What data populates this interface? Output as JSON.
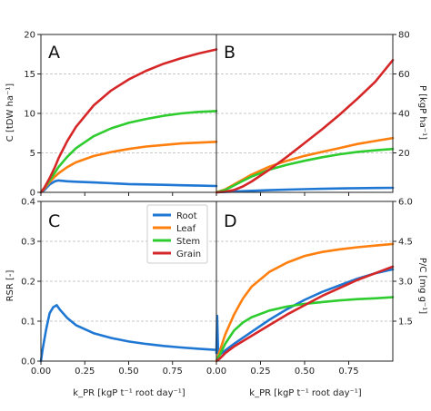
{
  "colors": {
    "Root": "#1f77d4",
    "Leaf": "#ff7f0e",
    "Stem": "#2ecc2e",
    "Grain": "#d62728",
    "grid": "#b8b8b8"
  },
  "legend": {
    "entries": [
      "Root",
      "Leaf",
      "Stem",
      "Grain"
    ],
    "placement": "inside panel C, top-right"
  },
  "chart_data": [
    {
      "panel": "A",
      "type": "line",
      "ylabel": "C [tDW ha⁻¹]",
      "xlim": [
        0,
        1
      ],
      "ylim": [
        0,
        20
      ],
      "yticks": [
        0,
        5,
        10,
        15,
        20
      ],
      "xticks": [],
      "grid": "horizontal dashed",
      "series": [
        {
          "name": "Root",
          "x": [
            0,
            0.02,
            0.05,
            0.08,
            0.1,
            0.15,
            0.2,
            0.3,
            0.4,
            0.5,
            0.6,
            0.7,
            0.8,
            0.9,
            1.0
          ],
          "y": [
            0,
            0.3,
            1.0,
            1.4,
            1.5,
            1.4,
            1.35,
            1.25,
            1.15,
            1.05,
            1.0,
            0.95,
            0.9,
            0.85,
            0.8
          ]
        },
        {
          "name": "Leaf",
          "x": [
            0,
            0.02,
            0.05,
            0.08,
            0.1,
            0.15,
            0.2,
            0.3,
            0.4,
            0.5,
            0.6,
            0.7,
            0.8,
            0.9,
            1.0
          ],
          "y": [
            0,
            0.5,
            1.3,
            2.0,
            2.4,
            3.2,
            3.8,
            4.6,
            5.1,
            5.5,
            5.8,
            6.0,
            6.2,
            6.3,
            6.4
          ]
        },
        {
          "name": "Stem",
          "x": [
            0,
            0.02,
            0.05,
            0.08,
            0.1,
            0.15,
            0.2,
            0.3,
            0.4,
            0.5,
            0.6,
            0.7,
            0.8,
            0.9,
            1.0
          ],
          "y": [
            0,
            0.6,
            1.5,
            2.5,
            3.2,
            4.5,
            5.6,
            7.1,
            8.1,
            8.8,
            9.3,
            9.7,
            10.0,
            10.2,
            10.3
          ]
        },
        {
          "name": "Grain",
          "x": [
            0,
            0.02,
            0.05,
            0.08,
            0.1,
            0.15,
            0.2,
            0.3,
            0.4,
            0.5,
            0.6,
            0.7,
            0.8,
            0.9,
            1.0
          ],
          "y": [
            0,
            0.6,
            1.8,
            3.2,
            4.3,
            6.5,
            8.3,
            11.0,
            12.9,
            14.3,
            15.4,
            16.3,
            17.0,
            17.6,
            18.1
          ]
        }
      ]
    },
    {
      "panel": "B",
      "type": "line",
      "ylabel": "P [kgP ha⁻¹]",
      "xlim": [
        0,
        1
      ],
      "ylim": [
        0,
        80
      ],
      "yticks": [
        20,
        40,
        60,
        80
      ],
      "xticks": [],
      "grid": "horizontal dashed",
      "series": [
        {
          "name": "Root",
          "x": [
            0,
            0.1,
            0.2,
            0.3,
            0.4,
            0.5,
            0.6,
            0.7,
            0.8,
            0.9,
            1.0
          ],
          "y": [
            0,
            0.4,
            0.8,
            1.1,
            1.4,
            1.6,
            1.8,
            2.0,
            2.1,
            2.2,
            2.3
          ]
        },
        {
          "name": "Leaf",
          "x": [
            0,
            0.05,
            0.1,
            0.15,
            0.2,
            0.3,
            0.4,
            0.5,
            0.6,
            0.7,
            0.8,
            0.9,
            1.0
          ],
          "y": [
            0,
            1.5,
            4.0,
            6.5,
            9.0,
            13.0,
            16.0,
            18.5,
            20.5,
            22.5,
            24.5,
            26.0,
            27.5
          ]
        },
        {
          "name": "Stem",
          "x": [
            0,
            0.05,
            0.1,
            0.15,
            0.2,
            0.3,
            0.4,
            0.5,
            0.6,
            0.7,
            0.8,
            0.9,
            1.0
          ],
          "y": [
            0,
            1.2,
            3.5,
            5.8,
            8.0,
            11.5,
            14.0,
            16.0,
            17.8,
            19.3,
            20.5,
            21.3,
            22.0
          ]
        },
        {
          "name": "Grain",
          "x": [
            0,
            0.05,
            0.1,
            0.15,
            0.2,
            0.3,
            0.4,
            0.5,
            0.6,
            0.7,
            0.8,
            0.9,
            1.0
          ],
          "y": [
            0,
            0.3,
            1.2,
            3.0,
            5.5,
            11.5,
            18.0,
            25.0,
            32.0,
            39.5,
            47.5,
            56.0,
            67.0
          ]
        }
      ]
    },
    {
      "panel": "C",
      "type": "line",
      "ylabel": "RSR [-]",
      "xlabel": "k_PR [kgP t⁻¹ root day⁻¹]",
      "xlim": [
        0,
        1
      ],
      "ylim": [
        0,
        0.4
      ],
      "yticks": [
        0.0,
        0.1,
        0.2,
        0.3,
        0.4
      ],
      "xticks": [
        0.0,
        0.25,
        0.5,
        0.75
      ],
      "xticklabels": [
        "0.00",
        "0.25",
        "0.50",
        "0.75"
      ],
      "grid": "horizontal dashed",
      "series": [
        {
          "name": "Root",
          "x": [
            0,
            0.01,
            0.03,
            0.05,
            0.07,
            0.09,
            0.11,
            0.15,
            0.2,
            0.3,
            0.4,
            0.5,
            0.6,
            0.7,
            0.8,
            0.9,
            1.0
          ],
          "y": [
            0,
            0.03,
            0.08,
            0.12,
            0.135,
            0.14,
            0.128,
            0.108,
            0.09,
            0.07,
            0.058,
            0.049,
            0.043,
            0.038,
            0.034,
            0.031,
            0.028
          ]
        }
      ]
    },
    {
      "panel": "D",
      "type": "line",
      "ylabel": "P/C [mg g⁻¹]",
      "xlabel": "k_PR [kgP t⁻¹ root day⁻¹]",
      "xlim": [
        0,
        1
      ],
      "ylim": [
        0,
        6
      ],
      "yticks": [
        1.5,
        3.0,
        4.5,
        6.0
      ],
      "xticks": [
        0.0,
        0.25,
        0.5,
        0.75
      ],
      "xticklabels": [
        "0.00",
        "0.25",
        "0.50",
        "0.75"
      ],
      "grid": "horizontal dashed",
      "series": [
        {
          "name": "Root",
          "x": [
            0,
            0.004,
            0.01,
            0.02,
            0.04,
            0.06,
            0.1,
            0.2,
            0.3,
            0.4,
            0.5,
            0.6,
            0.7,
            0.8,
            0.9,
            1.0
          ],
          "y": [
            0.3,
            1.7,
            0.3,
            0.25,
            0.35,
            0.45,
            0.65,
            1.1,
            1.55,
            1.95,
            2.3,
            2.6,
            2.85,
            3.1,
            3.3,
            3.45
          ]
        },
        {
          "name": "Leaf",
          "x": [
            0,
            0.02,
            0.05,
            0.08,
            0.1,
            0.15,
            0.2,
            0.3,
            0.4,
            0.5,
            0.6,
            0.7,
            0.8,
            0.9,
            1.0
          ],
          "y": [
            0,
            0.4,
            1.0,
            1.45,
            1.75,
            2.35,
            2.8,
            3.35,
            3.7,
            3.95,
            4.1,
            4.2,
            4.28,
            4.34,
            4.4
          ]
        },
        {
          "name": "Stem",
          "x": [
            0,
            0.02,
            0.05,
            0.08,
            0.1,
            0.15,
            0.2,
            0.3,
            0.4,
            0.5,
            0.6,
            0.7,
            0.8,
            0.9,
            1.0
          ],
          "y": [
            0,
            0.25,
            0.65,
            0.95,
            1.15,
            1.45,
            1.65,
            1.9,
            2.05,
            2.15,
            2.22,
            2.28,
            2.33,
            2.36,
            2.4
          ]
        },
        {
          "name": "Grain",
          "x": [
            0,
            0.02,
            0.05,
            0.08,
            0.1,
            0.15,
            0.2,
            0.3,
            0.4,
            0.5,
            0.6,
            0.7,
            0.8,
            0.9,
            1.0
          ],
          "y": [
            0,
            0.1,
            0.3,
            0.45,
            0.55,
            0.75,
            0.95,
            1.35,
            1.75,
            2.1,
            2.45,
            2.75,
            3.05,
            3.3,
            3.55
          ]
        }
      ]
    }
  ]
}
